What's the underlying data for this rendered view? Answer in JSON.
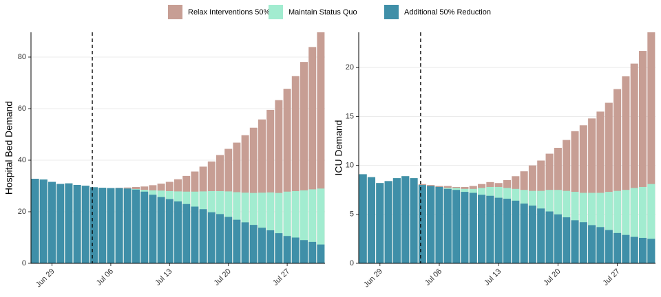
{
  "chart_data": [
    {
      "type": "bar",
      "ylabel": "Hospital Bed Demand",
      "categories": [
        null,
        null,
        "Jun 29",
        null,
        null,
        null,
        null,
        null,
        null,
        "Jul 06",
        null,
        null,
        null,
        null,
        null,
        null,
        "Jul 13",
        null,
        null,
        null,
        null,
        null,
        null,
        "Jul 20",
        null,
        null,
        null,
        null,
        null,
        null,
        "Jul 27",
        null,
        null,
        null,
        null
      ],
      "series": [
        {
          "name": "Relax Interventions 50%",
          "color": "#c79e94",
          "values": [
            32.8,
            32.5,
            31.6,
            30.8,
            31,
            30.4,
            30.1,
            29.5,
            29.3,
            29.2,
            29.3,
            29.4,
            29.6,
            29.8,
            30.3,
            30.9,
            31.6,
            32.6,
            33.9,
            35.6,
            37.5,
            39.5,
            42,
            44.4,
            46.8,
            49.7,
            52.6,
            55.8,
            59.5,
            63.3,
            67.7,
            72.6,
            78.1,
            83.9,
            89.6
          ]
        },
        {
          "name": "Maintain Status Quo",
          "color": "#a2ecd0",
          "values": [
            32.8,
            32.5,
            31.6,
            30.8,
            31,
            30.4,
            30.1,
            29.5,
            29.3,
            29.2,
            29.2,
            29,
            28.8,
            28.5,
            28.3,
            28.2,
            28,
            27.9,
            27.8,
            27.8,
            27.9,
            28,
            28,
            27.9,
            27.6,
            27.4,
            27.3,
            27.4,
            27.5,
            27.3,
            27.8,
            28,
            28.3,
            28.7,
            29
          ]
        },
        {
          "name": "Additional 50% Reduction",
          "color": "#3f8fa8",
          "values": [
            32.8,
            32.5,
            31.6,
            30.8,
            31,
            30.4,
            30.1,
            29.5,
            29.3,
            29.2,
            29.2,
            29,
            28.6,
            27.8,
            26.6,
            25.7,
            24.9,
            24,
            23,
            22,
            21,
            19.8,
            19.1,
            18,
            16.9,
            15.9,
            14.9,
            13.8,
            12.8,
            11.7,
            10.6,
            10,
            9,
            8.3,
            7.3
          ]
        }
      ],
      "ylim": [
        0,
        89.6
      ],
      "yticks": [
        0,
        20,
        40,
        60,
        80
      ],
      "grid": true,
      "vline": 6.8
    },
    {
      "type": "bar",
      "ylabel": "ICU Demand",
      "categories": [
        null,
        null,
        "Jun 29",
        null,
        null,
        null,
        null,
        null,
        null,
        "Jul 06",
        null,
        null,
        null,
        null,
        null,
        null,
        "Jul 13",
        null,
        null,
        null,
        null,
        null,
        null,
        "Jul 20",
        null,
        null,
        null,
        null,
        null,
        null,
        "Jul 27",
        null,
        null,
        null,
        null
      ],
      "series": [
        {
          "values": [
            9.1,
            8.8,
            8.2,
            8.4,
            8.7,
            8.9,
            8.7,
            8.1,
            8,
            7.9,
            7.9,
            7.8,
            7.8,
            7.9,
            8.1,
            8.3,
            8.2,
            8.5,
            8.9,
            9.4,
            10,
            10.5,
            11.2,
            11.8,
            12.6,
            13.5,
            14.1,
            14.8,
            15.5,
            16.4,
            17.8,
            19.1,
            20.4,
            21.7,
            23.6
          ]
        },
        {
          "values": [
            9.1,
            8.8,
            8.2,
            8.4,
            8.7,
            8.9,
            8.7,
            8,
            7.9,
            7.8,
            7.7,
            7.7,
            7.6,
            7.6,
            7.7,
            7.8,
            7.8,
            7.7,
            7.6,
            7.5,
            7.4,
            7.4,
            7.5,
            7.5,
            7.4,
            7.3,
            7.2,
            7.2,
            7.2,
            7.3,
            7.4,
            7.5,
            7.7,
            7.8,
            8.1
          ]
        },
        {
          "values": [
            9.1,
            8.8,
            8.2,
            8.4,
            8.7,
            8.9,
            8.7,
            8,
            7.9,
            7.8,
            7.6,
            7.5,
            7.3,
            7.2,
            7,
            6.9,
            6.7,
            6.6,
            6.4,
            6.1,
            5.9,
            5.6,
            5.3,
            5,
            4.7,
            4.4,
            4.2,
            3.9,
            3.7,
            3.4,
            3.1,
            2.9,
            2.7,
            2.6,
            2.5
          ]
        }
      ],
      "ylim": [
        0,
        23.6
      ],
      "yticks": [
        0,
        5,
        10,
        15,
        20
      ],
      "grid": true,
      "vline": 6.8
    }
  ]
}
